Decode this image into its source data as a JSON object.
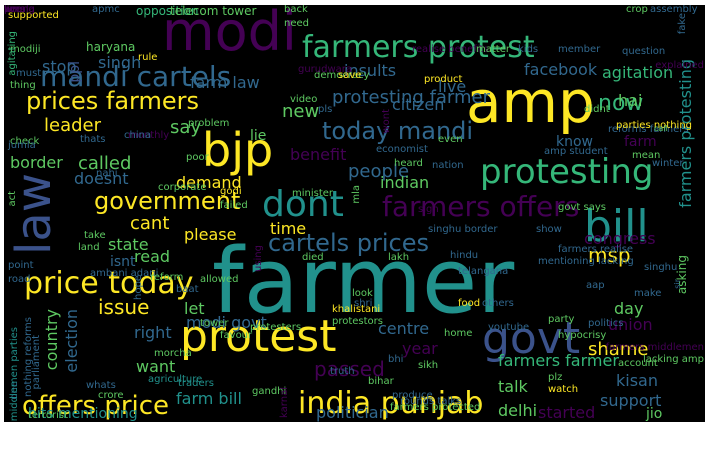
{
  "palette": {
    "background": "#000000",
    "purple": "#440154",
    "indigo": "#3b528b",
    "blue": "#31688e",
    "teal": "#21918c",
    "green": "#35b779",
    "lime": "#5ec962",
    "yellow": "#fde725"
  },
  "words": [
    {
      "text": "farmer",
      "color": "#21918c"
    },
    {
      "text": "amp",
      "color": "#fde725"
    },
    {
      "text": "modi",
      "color": "#440154"
    },
    {
      "text": "bjp",
      "color": "#fde725"
    },
    {
      "text": "law",
      "color": "#3b528b"
    },
    {
      "text": "bill",
      "color": "#21918c"
    },
    {
      "text": "govt",
      "color": "#3b528b"
    },
    {
      "text": "protest",
      "color": "#fde725"
    },
    {
      "text": "farmers protest",
      "color": "#35b779"
    },
    {
      "text": "mandi cartels",
      "color": "#31688e"
    },
    {
      "text": "dont",
      "color": "#21918c"
    },
    {
      "text": "farmers offers",
      "color": "#440154"
    },
    {
      "text": "protesting",
      "color": "#35b779"
    },
    {
      "text": "cartels prices",
      "color": "#31688e"
    },
    {
      "text": "price today",
      "color": "#fde725"
    },
    {
      "text": "offers price",
      "color": "#fde725"
    },
    {
      "text": "india punjab",
      "color": "#fde725"
    },
    {
      "text": "prices farmers",
      "color": "#fde725"
    },
    {
      "text": "today mandi",
      "color": "#31688e"
    },
    {
      "text": "government",
      "color": "#fde725"
    },
    {
      "text": "protesting farmer",
      "color": "#31688e"
    },
    {
      "text": "now",
      "color": "#35b779"
    },
    {
      "text": "farmers protesting",
      "color": "#21918c"
    },
    {
      "text": "msp",
      "color": "#fde725"
    },
    {
      "text": "issue",
      "color": "#fde725"
    },
    {
      "text": "shame",
      "color": "#fde725"
    },
    {
      "text": "passed",
      "color": "#440154"
    },
    {
      "text": "people",
      "color": "#31688e"
    },
    {
      "text": "leader",
      "color": "#fde725"
    },
    {
      "text": "say",
      "color": "#5ec962"
    },
    {
      "text": "new",
      "color": "#5ec962"
    },
    {
      "text": "farm law",
      "color": "#31688e"
    },
    {
      "text": "insults",
      "color": "#31688e"
    },
    {
      "text": "live",
      "color": "#31688e"
    },
    {
      "text": "facebook",
      "color": "#31688e"
    },
    {
      "text": "agitation",
      "color": "#35b779"
    },
    {
      "text": "stop",
      "color": "#31688e"
    },
    {
      "text": "singh",
      "color": "#31688e"
    },
    {
      "text": "ppl",
      "color": "#3b528b"
    },
    {
      "text": "citizen",
      "color": "#31688e"
    },
    {
      "text": "hai",
      "color": "#5ec962"
    },
    {
      "text": "know",
      "color": "#31688e"
    },
    {
      "text": "farm",
      "color": "#440154"
    },
    {
      "text": "called",
      "color": "#5ec962"
    },
    {
      "text": "lie",
      "color": "#5ec962"
    },
    {
      "text": "benefit",
      "color": "#440154"
    },
    {
      "text": "border",
      "color": "#5ec962"
    },
    {
      "text": "doesnt",
      "color": "#31688e"
    },
    {
      "text": "demand",
      "color": "#fde725"
    },
    {
      "text": "indian",
      "color": "#5ec962"
    },
    {
      "text": "cant",
      "color": "#fde725"
    },
    {
      "text": "time",
      "color": "#fde725"
    },
    {
      "text": "please",
      "color": "#fde725"
    },
    {
      "text": "state",
      "color": "#5ec962"
    },
    {
      "text": "isnt",
      "color": "#31688e"
    },
    {
      "text": "read",
      "color": "#5ec962"
    },
    {
      "text": "congress",
      "color": "#440154"
    },
    {
      "text": "let",
      "color": "#5ec962"
    },
    {
      "text": "day",
      "color": "#5ec962"
    },
    {
      "text": "right",
      "color": "#31688e"
    },
    {
      "text": "country",
      "color": "#5ec962"
    },
    {
      "text": "election",
      "color": "#31688e"
    },
    {
      "text": "centre",
      "color": "#31688e"
    },
    {
      "text": "union",
      "color": "#440154"
    },
    {
      "text": "year",
      "color": "#440154"
    },
    {
      "text": "want",
      "color": "#5ec962"
    },
    {
      "text": "modi govt",
      "color": "#31688e"
    },
    {
      "text": "farmers farmer",
      "color": "#35b779"
    },
    {
      "text": "kisan",
      "color": "#31688e"
    },
    {
      "text": "talk",
      "color": "#5ec962"
    },
    {
      "text": "support",
      "color": "#31688e"
    },
    {
      "text": "farm bill",
      "color": "#21918c"
    },
    {
      "text": "politician",
      "color": "#31688e"
    },
    {
      "text": "started",
      "color": "#440154"
    },
    {
      "text": "delhi",
      "color": "#5ec962"
    },
    {
      "text": "jio",
      "color": "#5ec962"
    },
    {
      "text": "hits mentioning",
      "color": "#21918c"
    },
    {
      "text": "opposition",
      "color": "#35b779"
    },
    {
      "text": "telecom tower",
      "color": "#5ec962"
    },
    {
      "text": "supported",
      "color": "#fde725"
    },
    {
      "text": "apmc",
      "color": "#31688e"
    },
    {
      "text": "haryana",
      "color": "#5ec962"
    },
    {
      "text": "back",
      "color": "#5ec962"
    },
    {
      "text": "need",
      "color": "#5ec962"
    },
    {
      "text": "crop",
      "color": "#5ec962"
    },
    {
      "text": "assembly",
      "color": "#31688e"
    },
    {
      "text": "fake",
      "color": "#31688e"
    },
    {
      "text": "modiji",
      "color": "#5ec962"
    },
    {
      "text": "must",
      "color": "#31688e"
    },
    {
      "text": "rule",
      "color": "#fde725"
    },
    {
      "text": "realise benefits",
      "color": "#440154"
    },
    {
      "text": "matter",
      "color": "#5ec962"
    },
    {
      "text": "kids",
      "color": "#31688e"
    },
    {
      "text": "member",
      "color": "#31688e"
    },
    {
      "text": "thing",
      "color": "#5ec962"
    },
    {
      "text": "democracy",
      "color": "#5ec962"
    },
    {
      "text": "save",
      "color": "#fde725"
    },
    {
      "text": "product",
      "color": "#fde725"
    },
    {
      "text": "video",
      "color": "#5ec962"
    },
    {
      "text": "pls",
      "color": "#31688e"
    },
    {
      "text": "didnt",
      "color": "#5ec962"
    },
    {
      "text": "problem",
      "color": "#5ec962"
    },
    {
      "text": "reforms farmers",
      "color": "#31688e"
    },
    {
      "text": "parties nothing",
      "color": "#fde725"
    },
    {
      "text": "thats",
      "color": "#31688e"
    },
    {
      "text": "even",
      "color": "#5ec962"
    },
    {
      "text": "amp student",
      "color": "#31688e"
    },
    {
      "text": "economist",
      "color": "#31688e"
    },
    {
      "text": "heard",
      "color": "#5ec962"
    },
    {
      "text": "poor",
      "color": "#5ec962"
    },
    {
      "text": "nation",
      "color": "#31688e"
    },
    {
      "text": "mean",
      "color": "#5ec962"
    },
    {
      "text": "winter",
      "color": "#31688e"
    },
    {
      "text": "nahi",
      "color": "#31688e"
    },
    {
      "text": "corporate",
      "color": "#5ec962"
    },
    {
      "text": "godi",
      "color": "#fde725"
    },
    {
      "text": "failed",
      "color": "#5ec962"
    },
    {
      "text": "govt says",
      "color": "#5ec962"
    },
    {
      "text": "minister",
      "color": "#5ec962"
    },
    {
      "text": "show",
      "color": "#31688e"
    },
    {
      "text": "farmers realise",
      "color": "#31688e"
    },
    {
      "text": "singhu border",
      "color": "#31688e"
    },
    {
      "text": "take",
      "color": "#5ec962"
    },
    {
      "text": "land",
      "color": "#5ec962"
    },
    {
      "text": "died",
      "color": "#5ec962"
    },
    {
      "text": "lakh",
      "color": "#5ec962"
    },
    {
      "text": "telangana",
      "color": "#31688e"
    },
    {
      "text": "mentioning lacking",
      "color": "#31688e"
    },
    {
      "text": "ambani adani",
      "color": "#31688e"
    },
    {
      "text": "reform",
      "color": "#5ec962"
    },
    {
      "text": "allowed",
      "color": "#5ec962"
    },
    {
      "text": "baat",
      "color": "#31688e"
    },
    {
      "text": "road",
      "color": "#31688e"
    },
    {
      "text": "point",
      "color": "#31688e"
    },
    {
      "text": "make",
      "color": "#31688e"
    },
    {
      "text": "asking",
      "color": "#5ec962"
    },
    {
      "text": "favour",
      "color": "#5ec962"
    },
    {
      "text": "khalistani",
      "color": "#fde725"
    },
    {
      "text": "food",
      "color": "#fde725"
    },
    {
      "text": "party",
      "color": "#5ec962"
    },
    {
      "text": "tower",
      "color": "#5ec962"
    },
    {
      "text": "protesters",
      "color": "#5ec962"
    },
    {
      "text": "protestors",
      "color": "#5ec962"
    },
    {
      "text": "youtube",
      "color": "#31688e"
    },
    {
      "text": "hypocrisy",
      "color": "#5ec962"
    },
    {
      "text": "shri",
      "color": "#31688e"
    },
    {
      "text": "others",
      "color": "#31688e"
    },
    {
      "text": "politics",
      "color": "#31688e"
    },
    {
      "text": "farmers middlemen",
      "color": "#440154"
    },
    {
      "text": "account",
      "color": "#5ec962"
    },
    {
      "text": "bhi",
      "color": "#31688e"
    },
    {
      "text": "bihar",
      "color": "#5ec962"
    },
    {
      "text": "truth",
      "color": "#31688e"
    },
    {
      "text": "sikh",
      "color": "#5ec962"
    },
    {
      "text": "lacking amp",
      "color": "#5ec962"
    },
    {
      "text": "plz",
      "color": "#5ec962"
    },
    {
      "text": "whats",
      "color": "#31688e"
    },
    {
      "text": "agriculture",
      "color": "#21918c"
    },
    {
      "text": "traders",
      "color": "#21918c"
    },
    {
      "text": "gandhi",
      "color": "#5ec962"
    },
    {
      "text": "watch",
      "color": "#fde725"
    },
    {
      "text": "produce",
      "color": "#31688e"
    },
    {
      "text": "farmers protected",
      "color": "#5ec962"
    },
    {
      "text": "rounds talks",
      "color": "#31688e"
    },
    {
      "text": "crore",
      "color": "#5ec962"
    },
    {
      "text": "morcha",
      "color": "#5ec962"
    },
    {
      "text": "nothing reforms",
      "color": "#31688e"
    },
    {
      "text": "one",
      "color": "#31688e"
    },
    {
      "text": "middlemen parties",
      "color": "#21918c"
    },
    {
      "text": "terrorist",
      "color": "#5ec962"
    },
    {
      "text": "agitating",
      "color": "#35b779"
    },
    {
      "text": "check",
      "color": "#5ec962"
    },
    {
      "text": "jumla",
      "color": "#31688e"
    },
    {
      "text": "act",
      "color": "#5ec962"
    },
    {
      "text": "parliament",
      "color": "#31688e"
    },
    {
      "text": "look",
      "color": "#5ec962"
    },
    {
      "text": "question",
      "color": "#31688e"
    },
    {
      "text": "explained",
      "color": "#440154"
    },
    {
      "text": "call",
      "color": "#5ec962"
    },
    {
      "text": "aap",
      "color": "#31688e"
    },
    {
      "text": "hindu",
      "color": "#31688e"
    },
    {
      "text": "home",
      "color": "#5ec962"
    },
    {
      "text": "sir",
      "color": "#31688e"
    },
    {
      "text": "mla",
      "color": "#5ec962"
    },
    {
      "text": "hope",
      "color": "#31688e"
    },
    {
      "text": "monthly",
      "color": "#440154"
    },
    {
      "text": "wont",
      "color": "#440154"
    },
    {
      "text": "using",
      "color": "#440154"
    },
    {
      "text": "karnal",
      "color": "#440154"
    },
    {
      "text": "singhu",
      "color": "#31688e"
    },
    {
      "text": "gurudwara",
      "color": "#440154"
    },
    {
      "text": "china",
      "color": "#31688e"
    },
    {
      "text": "sign",
      "color": "#440154"
    },
    {
      "text": "pms",
      "color": "#440154"
    },
    {
      "text": "wrong",
      "color": "#440154"
    },
    {
      "text": "kerala",
      "color": "#440154"
    },
    {
      "text": "live",
      "color": "#440154"
    }
  ]
}
